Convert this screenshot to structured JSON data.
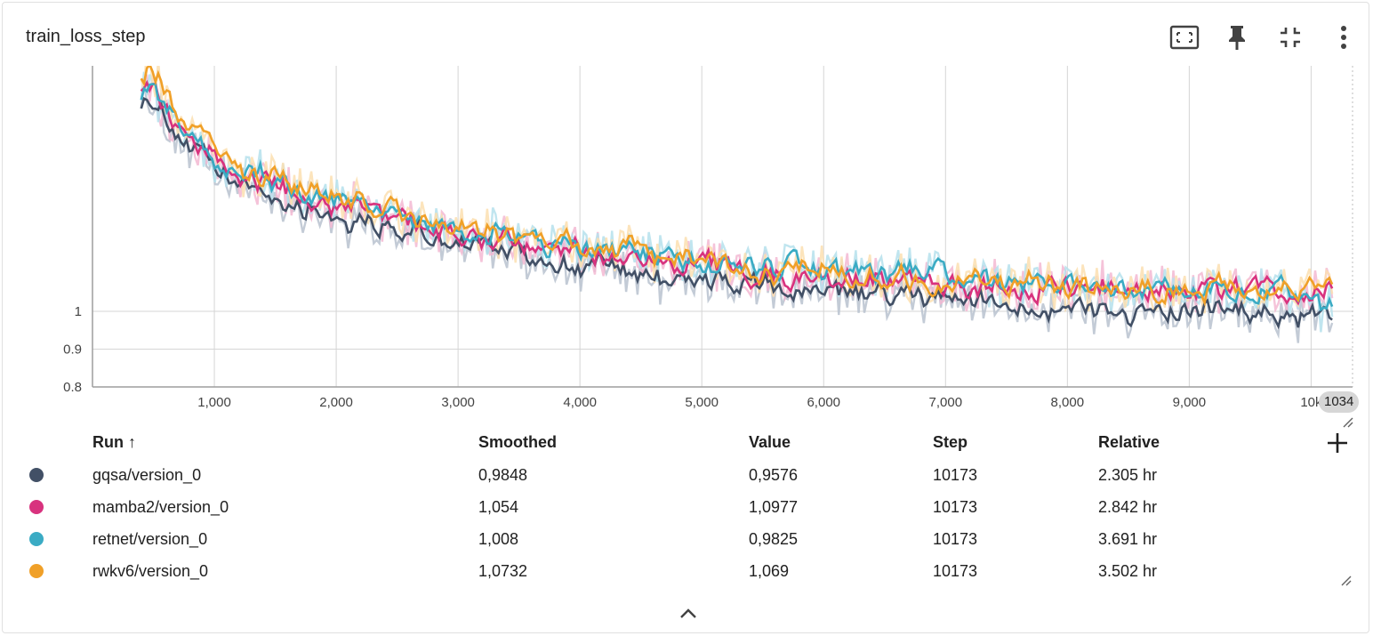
{
  "card": {
    "title": "train_loss_step",
    "toolbar": {
      "fit_icon": "fit-to-domain-icon",
      "pin_icon": "pin-icon",
      "collapse_icon": "fullscreen-exit-icon",
      "more_icon": "more-vert-icon"
    }
  },
  "chart_data": {
    "type": "line",
    "title": "",
    "xlabel": "",
    "ylabel": "",
    "xlim": [
      0,
      10340
    ],
    "ylim": [
      0.8,
      1.65
    ],
    "grid": true,
    "legend": "none",
    "x_ticks": [
      "1,000",
      "2,000",
      "3,000",
      "4,000",
      "5,000",
      "6,000",
      "7,000",
      "8,000",
      "9,000",
      "10k"
    ],
    "x_tick_values": [
      1000,
      2000,
      3000,
      4000,
      5000,
      6000,
      7000,
      8000,
      9000,
      10000
    ],
    "y_ticks": [
      "1",
      "0.9",
      "0.8"
    ],
    "y_tick_values": [
      1.0,
      0.9,
      0.8
    ],
    "hover_step": "1034",
    "series": [
      {
        "name": "gqsa/version_0",
        "color": "#425066",
        "raw_color": "#b8c2cf",
        "x": [
          400,
          600,
          800,
          1000,
          1200,
          1500,
          2000,
          2500,
          3000,
          3500,
          4000,
          4500,
          5000,
          5500,
          6000,
          6500,
          7000,
          7500,
          8000,
          8500,
          9000,
          9500,
          10173
        ],
        "values": [
          1.6,
          1.5,
          1.42,
          1.36,
          1.33,
          1.3,
          1.25,
          1.21,
          1.18,
          1.15,
          1.12,
          1.1,
          1.08,
          1.06,
          1.05,
          1.04,
          1.03,
          1.02,
          1.01,
          1.0,
          1.0,
          0.99,
          0.9848
        ]
      },
      {
        "name": "mamba2/version_0",
        "color": "#d8327e",
        "raw_color": "#f3b8d2",
        "x": [
          400,
          600,
          800,
          1000,
          1200,
          1500,
          2000,
          2500,
          3000,
          3500,
          4000,
          4500,
          5000,
          5500,
          6000,
          6500,
          7000,
          7500,
          8000,
          8500,
          9000,
          9500,
          10173
        ],
        "values": [
          1.62,
          1.52,
          1.44,
          1.39,
          1.36,
          1.33,
          1.28,
          1.24,
          1.21,
          1.18,
          1.16,
          1.14,
          1.12,
          1.1,
          1.09,
          1.08,
          1.07,
          1.06,
          1.06,
          1.06,
          1.06,
          1.05,
          1.054
        ]
      },
      {
        "name": "retnet/version_0",
        "color": "#3aabc4",
        "raw_color": "#b5e1ec",
        "x": [
          400,
          600,
          800,
          1000,
          1200,
          1500,
          2000,
          2500,
          3000,
          3500,
          4000,
          4500,
          5000,
          5500,
          6000,
          6500,
          7000,
          7500,
          8000,
          8500,
          9000,
          9500,
          10173
        ],
        "values": [
          1.62,
          1.53,
          1.45,
          1.4,
          1.37,
          1.34,
          1.29,
          1.25,
          1.21,
          1.19,
          1.17,
          1.15,
          1.13,
          1.12,
          1.11,
          1.1,
          1.09,
          1.08,
          1.07,
          1.07,
          1.06,
          1.06,
          1.008
        ]
      },
      {
        "name": "rwkv6/version_0",
        "color": "#f0a028",
        "raw_color": "#fbdfb0",
        "x": [
          400,
          600,
          800,
          1000,
          1200,
          1500,
          2000,
          2500,
          3000,
          3500,
          4000,
          4500,
          5000,
          5500,
          6000,
          6500,
          7000,
          7500,
          8000,
          8500,
          9000,
          9500,
          10173
        ],
        "values": [
          1.65,
          1.56,
          1.47,
          1.41,
          1.38,
          1.34,
          1.29,
          1.25,
          1.22,
          1.19,
          1.17,
          1.15,
          1.13,
          1.11,
          1.1,
          1.09,
          1.08,
          1.07,
          1.07,
          1.06,
          1.06,
          1.06,
          1.0732
        ]
      }
    ]
  },
  "table": {
    "headers": {
      "run": "Run ↑",
      "smoothed": "Smoothed",
      "value": "Value",
      "step": "Step",
      "relative": "Relative"
    },
    "add_icon": "add-column-icon",
    "rows": [
      {
        "run": "gqsa/version_0",
        "smoothed": "0,9848",
        "value": "0,9576",
        "step": "10173",
        "relative": "2.305 hr",
        "color": "#425066"
      },
      {
        "run": "mamba2/version_0",
        "smoothed": "1,054",
        "value": "1,0977",
        "step": "10173",
        "relative": "2.842 hr",
        "color": "#d8327e"
      },
      {
        "run": "retnet/version_0",
        "smoothed": "1,008",
        "value": "0,9825",
        "step": "10173",
        "relative": "3.691 hr",
        "color": "#3aabc4"
      },
      {
        "run": "rwkv6/version_0",
        "smoothed": "1,0732",
        "value": "1,069",
        "step": "10173",
        "relative": "3.502 hr",
        "color": "#f0a028"
      }
    ]
  },
  "footer": {
    "collapse_icon": "chevron-up-icon"
  }
}
